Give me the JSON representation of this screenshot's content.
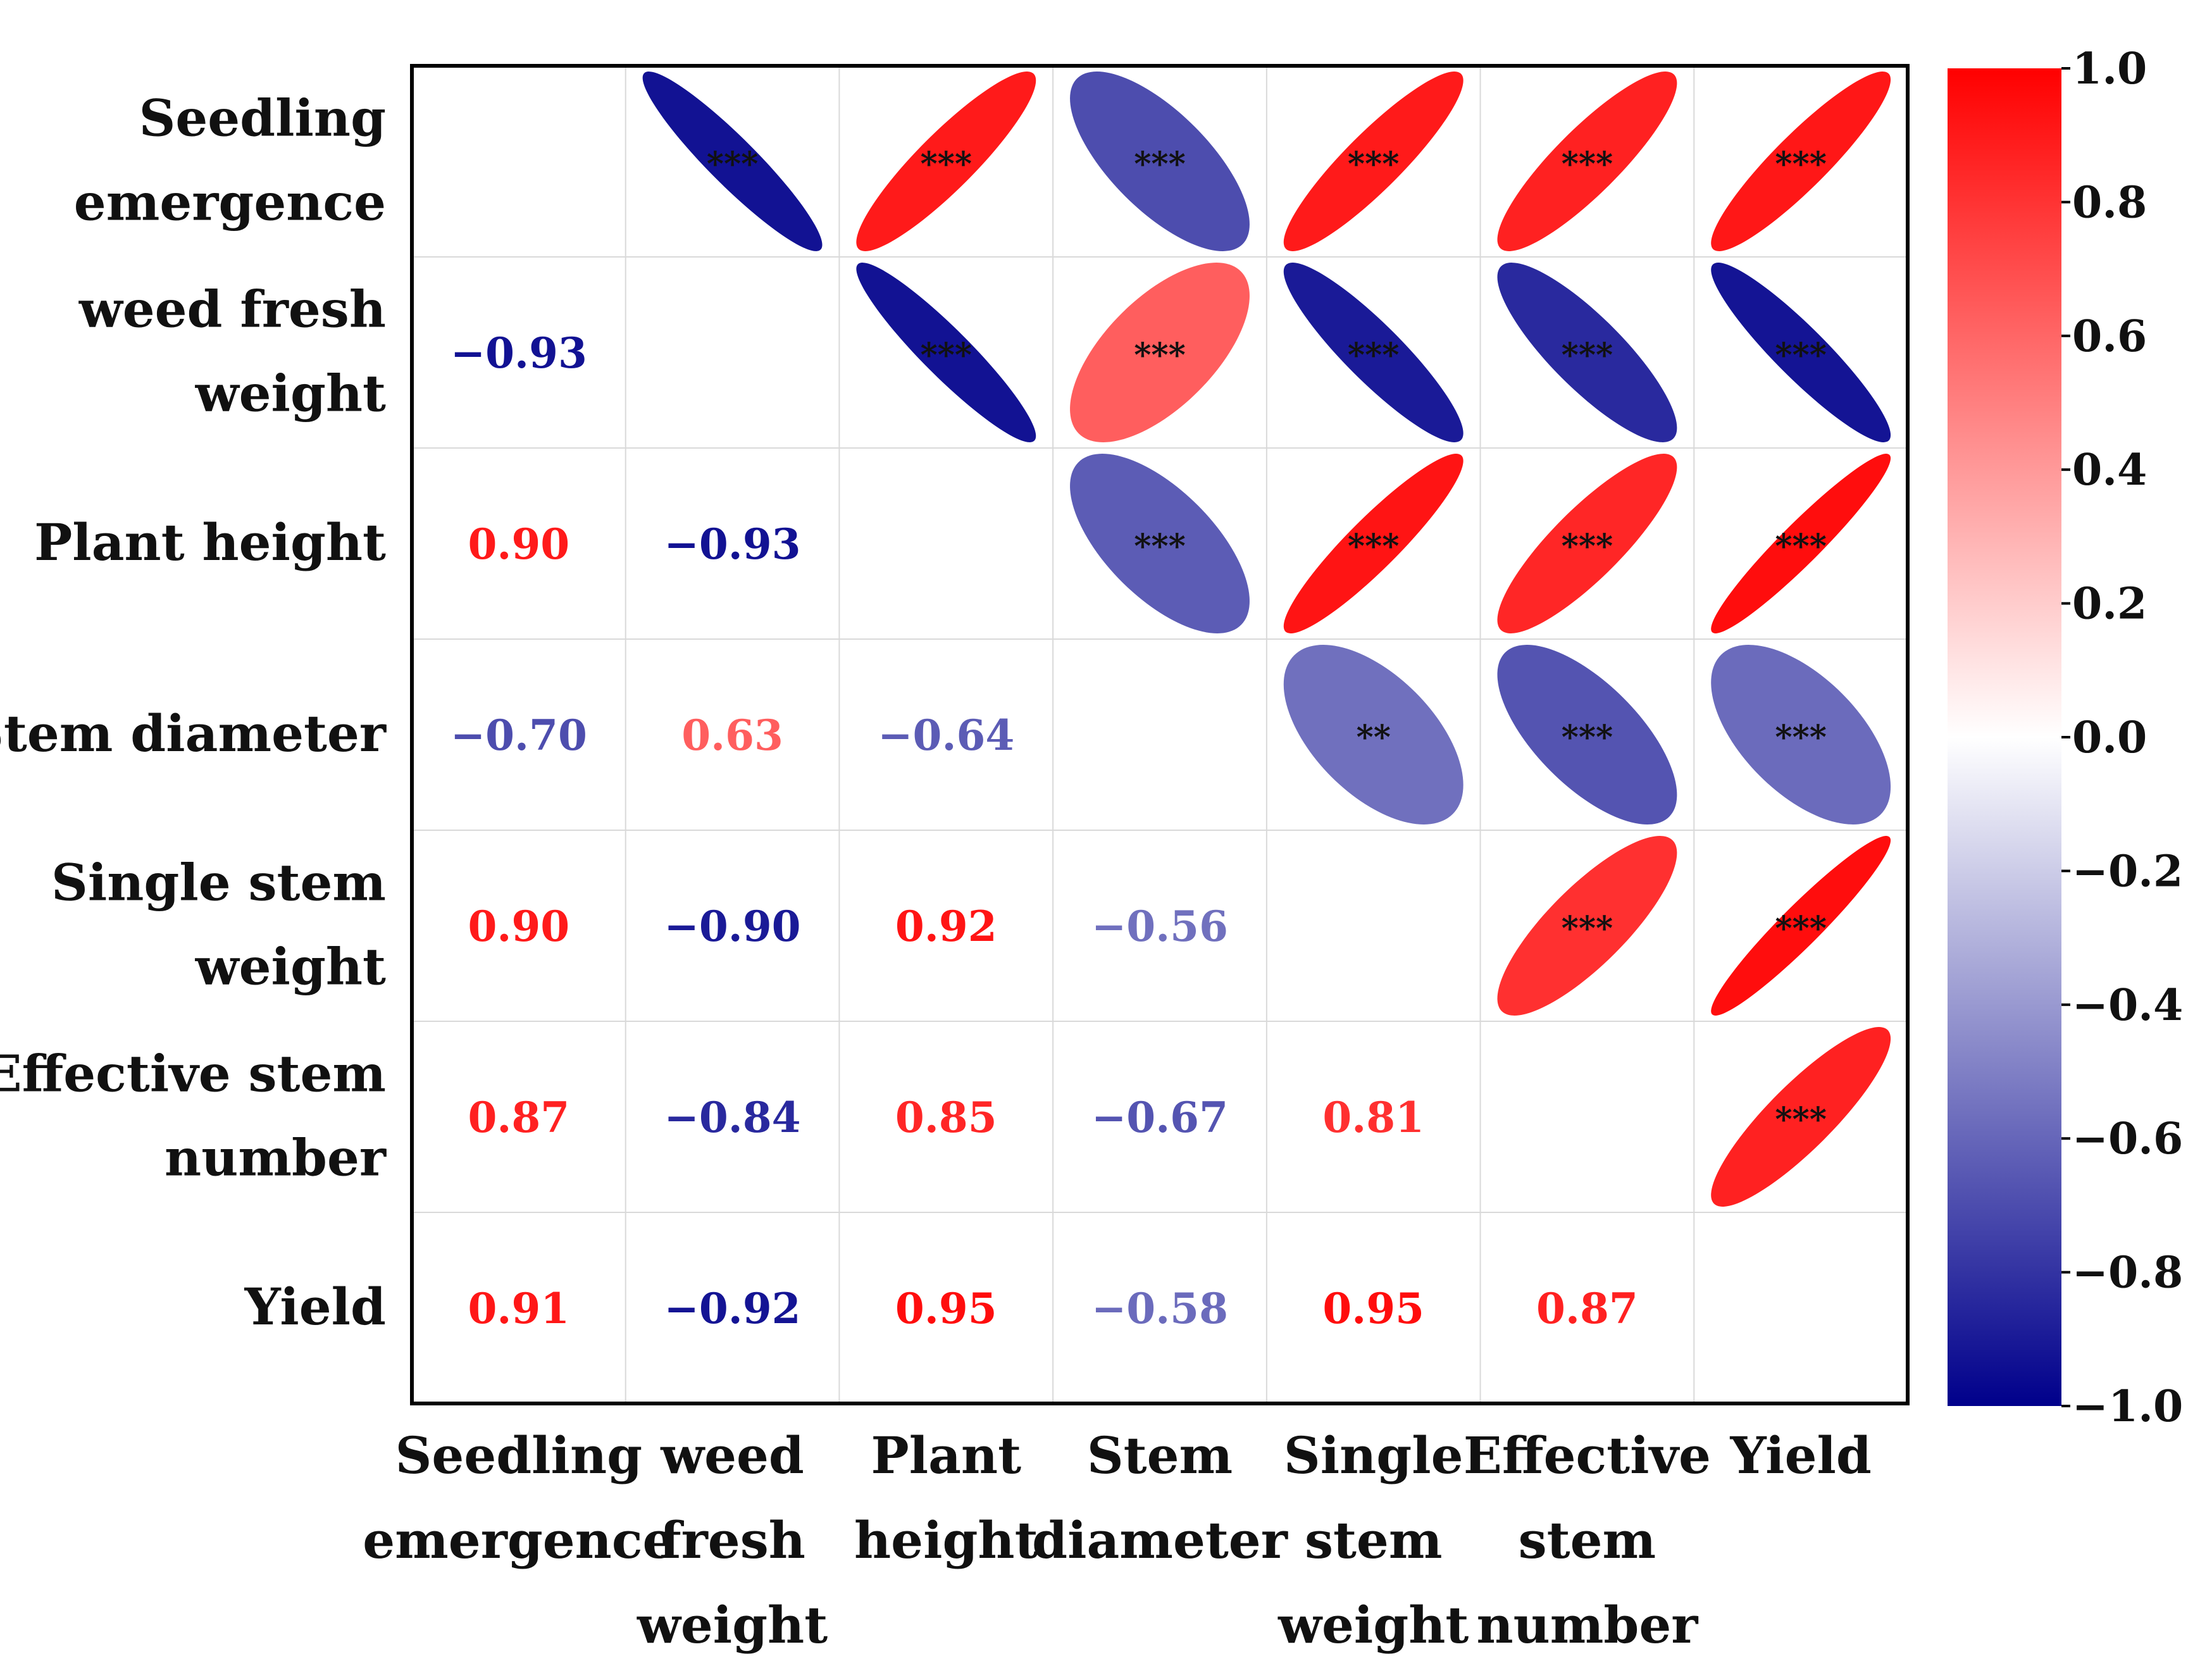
{
  "chart_data": {
    "type": "heatmap",
    "subtype": "correlation-ellipse-matrix",
    "variables": [
      {
        "lines": [
          "Seedling",
          "emergence"
        ]
      },
      {
        "lines": [
          "weed fresh",
          "weight"
        ]
      },
      {
        "lines": [
          "Plant height"
        ]
      },
      {
        "lines": [
          "Stem diameter"
        ]
      },
      {
        "lines": [
          "Single stem",
          "weight"
        ]
      },
      {
        "lines": [
          "Effective stem ",
          "number"
        ]
      },
      {
        "lines": [
          "Yield"
        ]
      }
    ],
    "x_labels": [
      {
        "lines": [
          "Seedling",
          "emergence"
        ]
      },
      {
        "lines": [
          "weed",
          "fresh",
          "weight"
        ]
      },
      {
        "lines": [
          "Plant",
          "height"
        ]
      },
      {
        "lines": [
          "Stem",
          "diameter"
        ]
      },
      {
        "lines": [
          "Single",
          "stem",
          "weight"
        ]
      },
      {
        "lines": [
          "Effective",
          "stem",
          "number"
        ]
      },
      {
        "lines": [
          "Yield"
        ]
      }
    ],
    "lower_triangle": [
      {
        "row": 1,
        "col": 0,
        "value": -0.93,
        "label": "−0.93"
      },
      {
        "row": 2,
        "col": 0,
        "value": 0.9,
        "label": "0.90"
      },
      {
        "row": 2,
        "col": 1,
        "value": -0.93,
        "label": "−0.93"
      },
      {
        "row": 3,
        "col": 0,
        "value": -0.7,
        "label": "−0.70"
      },
      {
        "row": 3,
        "col": 1,
        "value": 0.63,
        "label": "0.63"
      },
      {
        "row": 3,
        "col": 2,
        "value": -0.64,
        "label": "−0.64"
      },
      {
        "row": 4,
        "col": 0,
        "value": 0.9,
        "label": "0.90"
      },
      {
        "row": 4,
        "col": 1,
        "value": -0.9,
        "label": "−0.90"
      },
      {
        "row": 4,
        "col": 2,
        "value": 0.92,
        "label": "0.92"
      },
      {
        "row": 4,
        "col": 3,
        "value": -0.56,
        "label": "−0.56"
      },
      {
        "row": 5,
        "col": 0,
        "value": 0.87,
        "label": "0.87"
      },
      {
        "row": 5,
        "col": 1,
        "value": -0.84,
        "label": "−0.84"
      },
      {
        "row": 5,
        "col": 2,
        "value": 0.85,
        "label": "0.85"
      },
      {
        "row": 5,
        "col": 3,
        "value": -0.67,
        "label": "−0.67"
      },
      {
        "row": 5,
        "col": 4,
        "value": 0.81,
        "label": "0.81"
      },
      {
        "row": 6,
        "col": 0,
        "value": 0.91,
        "label": "0.91"
      },
      {
        "row": 6,
        "col": 1,
        "value": -0.92,
        "label": "−0.92"
      },
      {
        "row": 6,
        "col": 2,
        "value": 0.95,
        "label": "0.95"
      },
      {
        "row": 6,
        "col": 3,
        "value": -0.58,
        "label": "−0.58"
      },
      {
        "row": 6,
        "col": 4,
        "value": 0.95,
        "label": "0.95"
      },
      {
        "row": 6,
        "col": 5,
        "value": 0.87,
        "label": "0.87"
      }
    ],
    "upper_significance": [
      {
        "row": 0,
        "col": 1,
        "sig": "***"
      },
      {
        "row": 0,
        "col": 2,
        "sig": "***"
      },
      {
        "row": 0,
        "col": 3,
        "sig": "***"
      },
      {
        "row": 0,
        "col": 4,
        "sig": "***"
      },
      {
        "row": 0,
        "col": 5,
        "sig": "***"
      },
      {
        "row": 0,
        "col": 6,
        "sig": "***"
      },
      {
        "row": 1,
        "col": 2,
        "sig": "***"
      },
      {
        "row": 1,
        "col": 3,
        "sig": "***"
      },
      {
        "row": 1,
        "col": 4,
        "sig": "***"
      },
      {
        "row": 1,
        "col": 5,
        "sig": "***"
      },
      {
        "row": 1,
        "col": 6,
        "sig": "***"
      },
      {
        "row": 2,
        "col": 3,
        "sig": "***"
      },
      {
        "row": 2,
        "col": 4,
        "sig": "***"
      },
      {
        "row": 2,
        "col": 5,
        "sig": "***"
      },
      {
        "row": 2,
        "col": 6,
        "sig": "***"
      },
      {
        "row": 3,
        "col": 4,
        "sig": "**"
      },
      {
        "row": 3,
        "col": 5,
        "sig": "***"
      },
      {
        "row": 3,
        "col": 6,
        "sig": "***"
      },
      {
        "row": 4,
        "col": 5,
        "sig": "***"
      },
      {
        "row": 4,
        "col": 6,
        "sig": "***"
      },
      {
        "row": 5,
        "col": 6,
        "sig": "***"
      }
    ],
    "colorbar": {
      "range": [
        -1.0,
        1.0
      ],
      "ticks": [
        {
          "value": 1.0,
          "label": "1.0"
        },
        {
          "value": 0.8,
          "label": "0.8"
        },
        {
          "value": 0.6,
          "label": "0.6"
        },
        {
          "value": 0.4,
          "label": "0.4"
        },
        {
          "value": 0.2,
          "label": "0.2"
        },
        {
          "value": 0.0,
          "label": "0.0"
        },
        {
          "value": -0.2,
          "label": "−0.2"
        },
        {
          "value": -0.4,
          "label": "−0.4"
        },
        {
          "value": -0.6,
          "label": "−0.6"
        },
        {
          "value": -0.8,
          "label": "−0.8"
        },
        {
          "value": -1.0,
          "label": "−1.0"
        }
      ],
      "color_low": "#00008b",
      "color_mid": "#ffffff",
      "color_high": "#ff0000"
    },
    "grid": true
  }
}
